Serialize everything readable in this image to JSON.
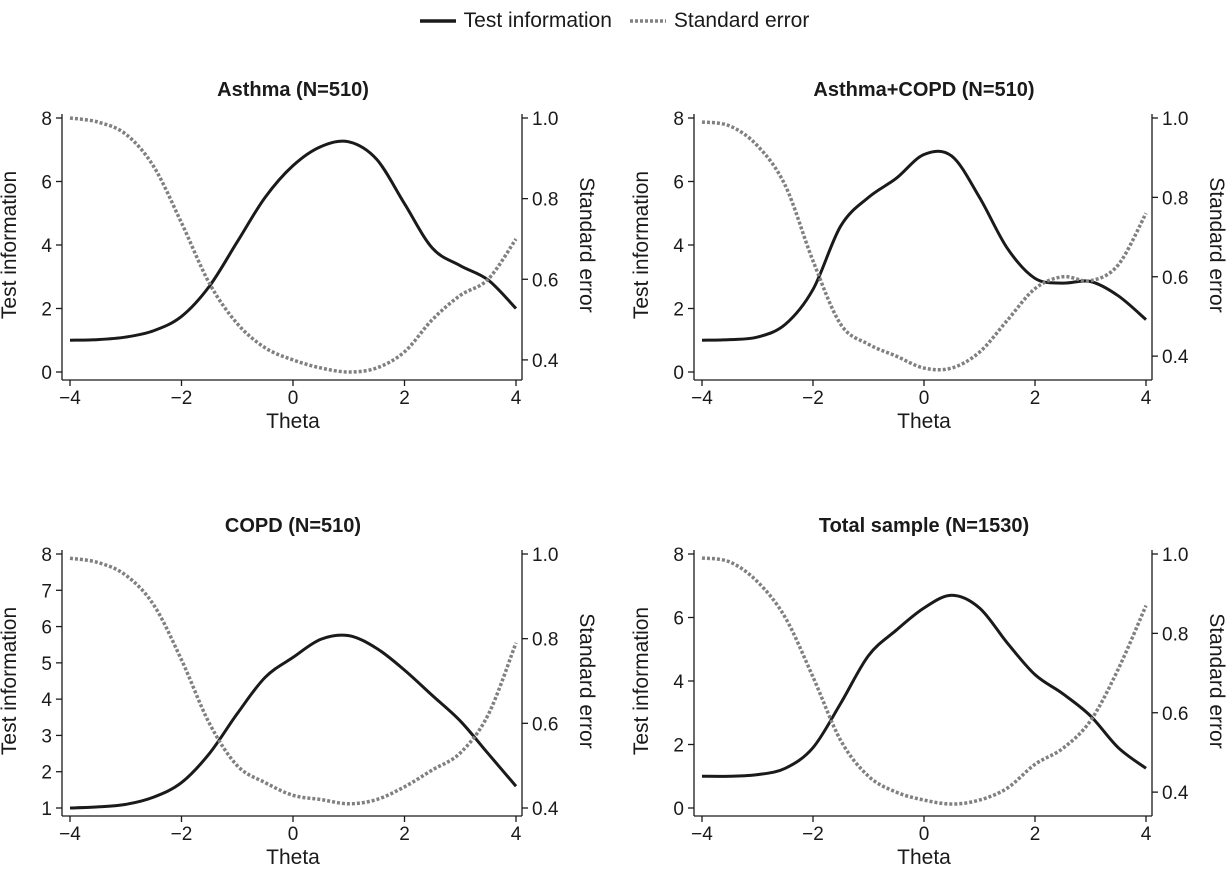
{
  "legend": {
    "items": [
      {
        "name": "Test information",
        "style": "solid",
        "color": "#1a1a1a"
      },
      {
        "name": "Standard error",
        "style": "dotted",
        "color": "#808080"
      }
    ]
  },
  "colors": {
    "info_line": "#1a1a1a",
    "se_line": "#808080",
    "axis": "#1a1a1a"
  },
  "chart_data": [
    {
      "type": "line",
      "title": "Asthma (N=510)",
      "xlabel": "Theta",
      "ylabel": "Test information",
      "y2label": "Standard error",
      "xlim": [
        -4,
        4
      ],
      "ylim": [
        0,
        8
      ],
      "y2lim": [
        0.37,
        1.0
      ],
      "xticks": [
        -4,
        -2,
        0,
        2,
        4
      ],
      "xtick_labels": [
        "−4",
        "−2",
        "0",
        "2",
        "4"
      ],
      "yticks": [
        0,
        2,
        4,
        6,
        8
      ],
      "y2ticks": [
        0.4,
        0.6,
        0.8,
        1.0
      ],
      "y2tick_labels": [
        "0.4",
        "0.6",
        "0.8",
        "1.0"
      ],
      "grid": false,
      "series": [
        {
          "name": "Test information",
          "axis": "left",
          "x": [
            -4,
            -3.5,
            -3,
            -2.5,
            -2,
            -1.5,
            -1,
            -0.5,
            0,
            0.5,
            1,
            1.5,
            2,
            2.5,
            3,
            3.5,
            4
          ],
          "y": [
            1.0,
            1.02,
            1.1,
            1.3,
            1.75,
            2.7,
            4.1,
            5.5,
            6.5,
            7.1,
            7.25,
            6.7,
            5.3,
            3.9,
            3.35,
            2.9,
            2.0
          ]
        },
        {
          "name": "Standard error",
          "axis": "right",
          "x": [
            -4,
            -3.5,
            -3,
            -2.5,
            -2,
            -1.5,
            -1,
            -0.5,
            0,
            0.5,
            1,
            1.5,
            2,
            2.5,
            3,
            3.5,
            4
          ],
          "y": [
            1.0,
            0.99,
            0.96,
            0.88,
            0.74,
            0.59,
            0.49,
            0.43,
            0.4,
            0.38,
            0.37,
            0.38,
            0.42,
            0.5,
            0.56,
            0.6,
            0.7
          ]
        }
      ]
    },
    {
      "type": "line",
      "title": "Asthma+COPD (N=510)",
      "xlabel": "Theta",
      "ylabel": "Test information",
      "y2label": "Standard error",
      "xlim": [
        -4,
        4
      ],
      "ylim": [
        0,
        8
      ],
      "y2lim": [
        0.36,
        1.0
      ],
      "xticks": [
        -4,
        -2,
        0,
        2,
        4
      ],
      "xtick_labels": [
        "−4",
        "−2",
        "0",
        "2",
        "4"
      ],
      "yticks": [
        0,
        2,
        4,
        6,
        8
      ],
      "y2ticks": [
        0.4,
        0.6,
        0.8,
        1.0
      ],
      "y2tick_labels": [
        "0.4",
        "0.6",
        "0.8",
        "1.0"
      ],
      "grid": false,
      "series": [
        {
          "name": "Test information",
          "axis": "left",
          "x": [
            -4,
            -3.5,
            -3,
            -2.5,
            -2,
            -1.5,
            -1,
            -0.5,
            0,
            0.5,
            1,
            1.5,
            2,
            2.5,
            3,
            3.5,
            4
          ],
          "y": [
            1.0,
            1.02,
            1.1,
            1.5,
            2.6,
            4.6,
            5.5,
            6.1,
            6.85,
            6.8,
            5.5,
            3.9,
            2.95,
            2.8,
            2.85,
            2.4,
            1.65
          ]
        },
        {
          "name": "Standard error",
          "axis": "right",
          "x": [
            -4,
            -3.5,
            -3,
            -2.5,
            -2,
            -1.5,
            -1,
            -0.5,
            0,
            0.5,
            1,
            1.5,
            2,
            2.5,
            3,
            3.5,
            4
          ],
          "y": [
            0.99,
            0.98,
            0.93,
            0.83,
            0.64,
            0.48,
            0.43,
            0.4,
            0.37,
            0.37,
            0.41,
            0.49,
            0.57,
            0.6,
            0.59,
            0.63,
            0.76
          ]
        }
      ]
    },
    {
      "type": "line",
      "title": "COPD (N=510)",
      "xlabel": "Theta",
      "ylabel": "Test information",
      "y2label": "Standard error",
      "xlim": [
        -4,
        4
      ],
      "ylim": [
        1,
        8
      ],
      "y2lim": [
        0.4,
        1.0
      ],
      "xticks": [
        -4,
        -2,
        0,
        2,
        4
      ],
      "xtick_labels": [
        "−4",
        "−2",
        "0",
        "2",
        "4"
      ],
      "yticks": [
        1,
        2,
        3,
        4,
        5,
        6,
        7,
        8
      ],
      "y2ticks": [
        0.4,
        0.6,
        0.8,
        1.0
      ],
      "y2tick_labels": [
        "0.4",
        "0.6",
        "0.8",
        "1.0"
      ],
      "grid": false,
      "series": [
        {
          "name": "Test information",
          "axis": "left",
          "x": [
            -4,
            -3.5,
            -3,
            -2.5,
            -2,
            -1.5,
            -1,
            -0.5,
            0,
            0.5,
            1,
            1.5,
            2,
            2.5,
            3,
            3.5,
            4
          ],
          "y": [
            1.0,
            1.03,
            1.1,
            1.3,
            1.7,
            2.5,
            3.6,
            4.6,
            5.15,
            5.65,
            5.75,
            5.4,
            4.8,
            4.1,
            3.4,
            2.5,
            1.6
          ]
        },
        {
          "name": "Standard error",
          "axis": "right",
          "x": [
            -4,
            -3.5,
            -3,
            -2.5,
            -2,
            -1.5,
            -1,
            -0.5,
            0,
            0.5,
            1,
            1.5,
            2,
            2.5,
            3,
            3.5,
            4
          ],
          "y": [
            0.99,
            0.98,
            0.95,
            0.88,
            0.75,
            0.6,
            0.5,
            0.46,
            0.43,
            0.42,
            0.41,
            0.42,
            0.45,
            0.49,
            0.53,
            0.62,
            0.79
          ]
        }
      ]
    },
    {
      "type": "line",
      "title": "Total sample (N=1530)",
      "xlabel": "Theta",
      "ylabel": "Test information",
      "y2label": "Standard error",
      "xlim": [
        -4,
        4
      ],
      "ylim": [
        0,
        8
      ],
      "y2lim": [
        0.36,
        1.0
      ],
      "xticks": [
        -4,
        -2,
        0,
        2,
        4
      ],
      "xtick_labels": [
        "−4",
        "−2",
        "0",
        "2",
        "4"
      ],
      "yticks": [
        0,
        2,
        4,
        6,
        8
      ],
      "y2ticks": [
        0.4,
        0.6,
        0.8,
        1.0
      ],
      "y2tick_labels": [
        "0.4",
        "0.6",
        "0.8",
        "1.0"
      ],
      "grid": false,
      "series": [
        {
          "name": "Test information",
          "axis": "left",
          "x": [
            -4,
            -3.5,
            -3,
            -2.5,
            -2,
            -1.5,
            -1,
            -0.5,
            0,
            0.5,
            1,
            1.5,
            2,
            2.5,
            3,
            3.5,
            4
          ],
          "y": [
            1.0,
            1.0,
            1.05,
            1.25,
            1.9,
            3.3,
            4.8,
            5.6,
            6.3,
            6.7,
            6.3,
            5.2,
            4.2,
            3.6,
            2.9,
            1.9,
            1.25
          ]
        },
        {
          "name": "Standard error",
          "axis": "right",
          "x": [
            -4,
            -3.5,
            -3,
            -2.5,
            -2,
            -1.5,
            -1,
            -0.5,
            0,
            0.5,
            1,
            1.5,
            2,
            2.5,
            3,
            3.5,
            4
          ],
          "y": [
            0.99,
            0.98,
            0.93,
            0.84,
            0.69,
            0.53,
            0.44,
            0.4,
            0.38,
            0.37,
            0.38,
            0.41,
            0.47,
            0.51,
            0.58,
            0.71,
            0.87
          ]
        }
      ]
    }
  ]
}
